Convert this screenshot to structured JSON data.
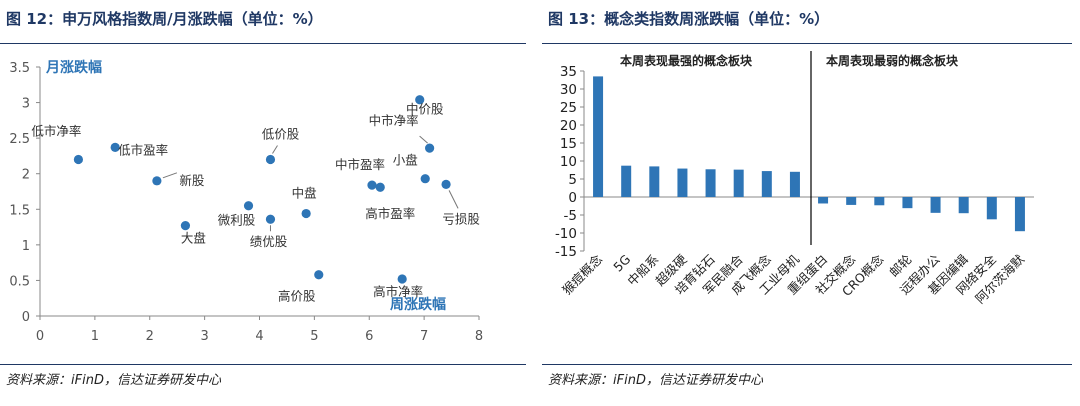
{
  "left_figure": {
    "title": "图 12：申万风格指数周/月涨跌幅（单位：%）",
    "source": "资料来源：iFinD，信达证券研发中心"
  },
  "right_figure": {
    "title": "图 13：概念类指数周涨跌幅（单位：%）",
    "source": "资料来源：iFinD，信达证券研发中心"
  },
  "chart_data": [
    {
      "type": "scatter",
      "title": "",
      "xlabel": "周涨跌幅",
      "ylabel": "月涨跌幅",
      "xlim": [
        0,
        8
      ],
      "ylim": [
        0,
        3.5
      ],
      "xticks": [
        "0",
        "1",
        "2",
        "3",
        "4",
        "5",
        "6",
        "7",
        "8"
      ],
      "yticks": [
        "0",
        "0.5",
        "1",
        "1.5",
        "2",
        "2.5",
        "3",
        "3.5"
      ],
      "grid": false,
      "point_color": "#2e75b6",
      "points": [
        {
          "label": "低市净率",
          "x": 0.7,
          "y": 2.2
        },
        {
          "label": "低市盈率",
          "x": 1.37,
          "y": 2.37
        },
        {
          "label": "新股",
          "x": 2.13,
          "y": 1.9
        },
        {
          "label": "大盘",
          "x": 2.65,
          "y": 1.27
        },
        {
          "label": "微利股",
          "x": 3.8,
          "y": 1.55
        },
        {
          "label": "低价股",
          "x": 4.2,
          "y": 2.2
        },
        {
          "label": "绩优股",
          "x": 4.2,
          "y": 1.36
        },
        {
          "label": "中盘",
          "x": 4.85,
          "y": 1.44
        },
        {
          "label": "高价股",
          "x": 5.08,
          "y": 0.58
        },
        {
          "label": "中市盈率",
          "x": 6.05,
          "y": 1.84
        },
        {
          "label": "高市盈率",
          "x": 6.2,
          "y": 1.81
        },
        {
          "label": "高市净率",
          "x": 6.6,
          "y": 0.52
        },
        {
          "label": "中价股",
          "x": 6.92,
          "y": 3.04
        },
        {
          "label": "小盘",
          "x": 7.02,
          "y": 1.93
        },
        {
          "label": "中市净率",
          "x": 7.1,
          "y": 2.36
        },
        {
          "label": "亏损股",
          "x": 7.4,
          "y": 1.85
        }
      ]
    },
    {
      "type": "bar",
      "title": "",
      "xlabel": "",
      "ylabel": "",
      "ylim": [
        -15,
        35
      ],
      "yticks": [
        "-15",
        "-10",
        "-5",
        "0",
        "5",
        "10",
        "15",
        "20",
        "25",
        "30",
        "35"
      ],
      "grid": false,
      "bar_color": "#2e75b6",
      "group_labels": [
        "本周表现最强的概念板块",
        "本周表现最弱的概念板块"
      ],
      "categories": [
        "猴痘概念",
        "5G",
        "中船系",
        "超级硬",
        "培育钻石",
        "军民融合",
        "成飞概念",
        "工业母机",
        "重组蛋白",
        "社交概念",
        "CRO概念",
        "邮轮",
        "远程办公",
        "基因编辑",
        "网络安全",
        "阿尔茨海默"
      ],
      "values": [
        33.5,
        8.7,
        8.5,
        7.9,
        7.7,
        7.6,
        7.2,
        7.0,
        -1.8,
        -2.2,
        -2.3,
        -3.1,
        -4.4,
        -4.5,
        -6.2,
        -9.5
      ]
    }
  ]
}
